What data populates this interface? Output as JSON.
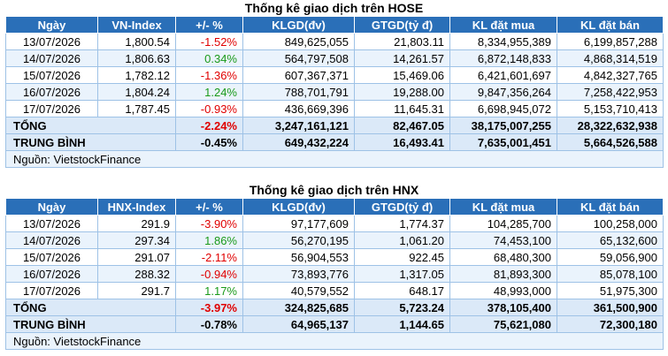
{
  "hose": {
    "title": "Thống kê giao dịch trên HOSE",
    "headers": [
      "Ngày",
      "VN-Index",
      "+/- %",
      "KLGD(đv)",
      "GTGD(tỷ đ)",
      "KL đặt mua",
      "KL đặt bán"
    ],
    "rows": [
      [
        "13/07/2026",
        "1,800.54",
        "-1.52%",
        "849,625,055",
        "21,803.11",
        "8,334,955,389",
        "6,199,857,288"
      ],
      [
        "14/07/2026",
        "1,806.63",
        "0.34%",
        "564,797,508",
        "14,261.57",
        "6,872,148,833",
        "4,868,314,519"
      ],
      [
        "15/07/2026",
        "1,782.12",
        "-1.36%",
        "607,367,371",
        "15,469.06",
        "6,421,601,697",
        "4,842,327,765"
      ],
      [
        "16/07/2026",
        "1,804.24",
        "1.24%",
        "788,701,791",
        "19,288.00",
        "9,847,356,264",
        "7,258,422,953"
      ],
      [
        "17/07/2026",
        "1,787.45",
        "-0.93%",
        "436,669,396",
        "11,645.31",
        "6,698,945,072",
        "5,153,710,413"
      ]
    ],
    "total": [
      "TỔNG",
      "-2.24%",
      "3,247,161,121",
      "82,467.05",
      "38,175,007,255",
      "28,322,632,938"
    ],
    "average": [
      "TRUNG BÌNH",
      "-0.45%",
      "649,432,224",
      "16,493.41",
      "7,635,001,451",
      "5,664,526,588"
    ],
    "source": "Nguồn: VietstockFinance"
  },
  "hnx": {
    "title": "Thống kê giao dịch trên HNX",
    "headers": [
      "Ngày",
      "HNX-Index",
      "+/- %",
      "KLGD(đv)",
      "GTGD(tỷ đ)",
      "KL đặt mua",
      "KL đặt bán"
    ],
    "rows": [
      [
        "13/07/2026",
        "291.9",
        "-3.90%",
        "97,177,609",
        "1,774.37",
        "104,285,700",
        "100,258,000"
      ],
      [
        "14/07/2026",
        "297.34",
        "1.86%",
        "56,270,195",
        "1,061.20",
        "74,453,100",
        "65,132,600"
      ],
      [
        "15/07/2026",
        "291.07",
        "-2.11%",
        "56,904,553",
        "922.45",
        "68,480,300",
        "59,056,900"
      ],
      [
        "16/07/2026",
        "288.32",
        "-0.94%",
        "73,893,776",
        "1,317.05",
        "81,893,300",
        "85,078,100"
      ],
      [
        "17/07/2026",
        "291.7",
        "1.17%",
        "40,579,552",
        "648.17",
        "48,993,000",
        "51,975,300"
      ]
    ],
    "total": [
      "TỔNG",
      "-3.97%",
      "324,825,685",
      "5,723.24",
      "378,105,400",
      "361,500,900"
    ],
    "average": [
      "TRUNG BÌNH",
      "-0.78%",
      "64,965,137",
      "1,144.65",
      "75,621,080",
      "72,300,180"
    ],
    "source": "Nguồn: VietstockFinance"
  },
  "colors": {
    "header_bg": "#2a6fb8",
    "negative": "#e00000",
    "positive": "#1a9a1a"
  }
}
